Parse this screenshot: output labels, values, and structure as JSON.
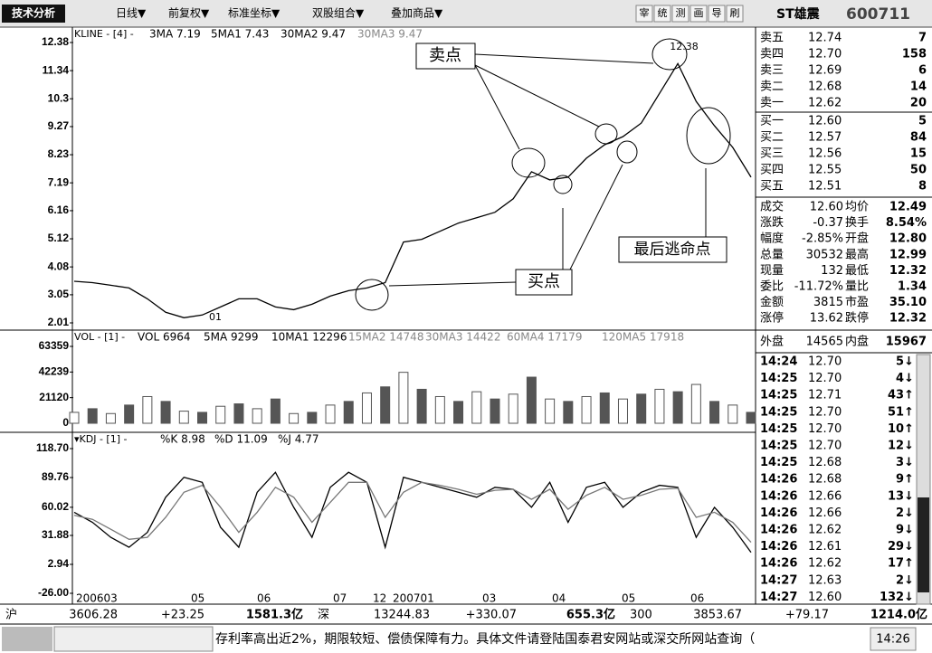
{
  "toolbar": {
    "title": "技术分析",
    "menus": [
      "日线▼",
      "前复权▼",
      "标准坐标▼",
      "双股组合▼",
      "叠加商品▼"
    ],
    "tools": [
      "宰",
      "统",
      "测",
      "画",
      "导",
      "刷"
    ]
  },
  "chart_data": [
    {
      "type": "line",
      "header": "KLINE - [4] -",
      "legend": [
        "3MA 7.19",
        "5MA1 7.43",
        "30MA2 9.47",
        "30MA3 9.47"
      ],
      "values": [
        3.55,
        3.5,
        3.4,
        3.3,
        2.9,
        2.4,
        2.2,
        2.3,
        2.6,
        2.9,
        2.9,
        2.6,
        2.5,
        2.7,
        3.0,
        3.2,
        3.3,
        3.5,
        5.0,
        5.1,
        5.4,
        5.7,
        5.9,
        6.1,
        6.6,
        7.6,
        7.3,
        7.4,
        8.1,
        8.6,
        8.9,
        9.4,
        10.5,
        11.6,
        10.2,
        9.3,
        8.5,
        7.4
      ],
      "color": "#000000",
      "ylim": [
        2.01,
        12.38
      ],
      "yticks": [
        12.38,
        11.34,
        10.3,
        9.27,
        8.23,
        7.19,
        6.16,
        5.12,
        4.08,
        3.05,
        2.01
      ],
      "annotations": [
        "卖点",
        "买点",
        "最后逃命点",
        "12.38",
        "01"
      ]
    },
    {
      "type": "bar",
      "header": "VOL - [1] -",
      "legend": [
        "VOL 6964",
        "5MA 9299",
        "10MA1 12296",
        "15MA2 14748",
        "30MA3 14422",
        "60MA4 17179",
        "120MA5 17918"
      ],
      "values": [
        9000,
        12000,
        8000,
        15000,
        22000,
        18000,
        10000,
        9000,
        14000,
        16000,
        12000,
        20000,
        8000,
        9000,
        15000,
        18000,
        25000,
        30000,
        42000,
        28000,
        22000,
        18000,
        26000,
        20000,
        24000,
        38000,
        20000,
        18000,
        22000,
        25000,
        20000,
        24000,
        28000,
        26000,
        32000,
        18000,
        15000,
        9000
      ],
      "color": "#555555",
      "ylim": [
        0,
        63359
      ],
      "yticks": [
        63359,
        42239,
        21120,
        0
      ]
    },
    {
      "type": "line",
      "header": "▾KDJ - [1] -",
      "legend": [
        "%K 8.98",
        "%D 11.09",
        "%J 4.77"
      ],
      "series": [
        {
          "name": "K",
          "color": "#000000",
          "values": [
            55,
            45,
            30,
            20,
            35,
            70,
            90,
            85,
            40,
            20,
            75,
            95,
            60,
            30,
            80,
            95,
            85,
            20,
            90,
            85,
            80,
            75,
            70,
            80,
            78,
            60,
            85,
            45,
            80,
            85,
            60,
            75,
            82,
            80,
            30,
            60,
            40,
            15
          ]
        },
        {
          "name": "D",
          "color": "#777777",
          "values": [
            52,
            48,
            38,
            28,
            30,
            50,
            75,
            82,
            60,
            35,
            55,
            80,
            70,
            45,
            65,
            85,
            85,
            50,
            75,
            85,
            82,
            78,
            73,
            77,
            78,
            68,
            78,
            58,
            72,
            80,
            68,
            72,
            78,
            79,
            50,
            55,
            45,
            25
          ]
        }
      ],
      "ylim": [
        -26,
        118.7
      ],
      "yticks": [
        {
          "value": 118.7,
          "label": "118.70"
        },
        89.76,
        60.02,
        31.88,
        2.94,
        {
          "value": -26,
          "label": "-26.00"
        }
      ]
    }
  ],
  "time_axis": [
    "200603",
    "05",
    "06",
    "07",
    "12",
    "200701",
    "03",
    "04",
    "05",
    "06"
  ],
  "quote": {
    "name": "ST雄震",
    "code": "600711",
    "asks": [
      [
        "卖五",
        "12.74",
        "7"
      ],
      [
        "卖四",
        "12.70",
        "158"
      ],
      [
        "卖三",
        "12.69",
        "6"
      ],
      [
        "卖二",
        "12.68",
        "14"
      ],
      [
        "卖一",
        "12.62",
        "20"
      ]
    ],
    "bids": [
      [
        "买一",
        "12.60",
        "5"
      ],
      [
        "买二",
        "12.57",
        "84"
      ],
      [
        "买三",
        "12.56",
        "15"
      ],
      [
        "买四",
        "12.55",
        "50"
      ],
      [
        "买五",
        "12.51",
        "8"
      ]
    ],
    "stats": [
      [
        "成交",
        "12.60",
        "均价",
        "12.49"
      ],
      [
        "涨跌",
        "-0.37",
        "换手",
        "8.54%"
      ],
      [
        "幅度",
        "-2.85%",
        "开盘",
        "12.80"
      ],
      [
        "总量",
        "30532",
        "最高",
        "12.99"
      ],
      [
        "现量",
        "132",
        "最低",
        "12.32"
      ],
      [
        "委比",
        "-11.72%",
        "量比",
        "1.34"
      ],
      [
        "金额",
        "3815",
        "市盈",
        "35.10"
      ],
      [
        "涨停",
        "13.62",
        "跌停",
        "12.32"
      ]
    ],
    "outer": [
      "外盘",
      "14565",
      "内盘",
      "15967"
    ],
    "ticks": [
      [
        "14:24",
        "12.70",
        "5↓"
      ],
      [
        "14:25",
        "12.70",
        "4↓"
      ],
      [
        "14:25",
        "12.71",
        "43↑"
      ],
      [
        "14:25",
        "12.70",
        "51↑"
      ],
      [
        "14:25",
        "12.70",
        "10↑"
      ],
      [
        "14:25",
        "12.70",
        "12↓"
      ],
      [
        "14:25",
        "12.68",
        "3↓"
      ],
      [
        "14:26",
        "12.68",
        "9↑"
      ],
      [
        "14:26",
        "12.66",
        "13↓"
      ],
      [
        "14:26",
        "12.66",
        "2↓"
      ],
      [
        "14:26",
        "12.62",
        "9↓"
      ],
      [
        "14:26",
        "12.61",
        "29↓"
      ],
      [
        "14:26",
        "12.62",
        "17↑"
      ],
      [
        "14:27",
        "12.63",
        "2↓"
      ],
      [
        "14:27",
        "12.60",
        "132↓"
      ]
    ]
  },
  "market_bar": [
    [
      "沪",
      "3606.28",
      "+23.25",
      "1581.3亿"
    ],
    [
      "深",
      "13244.83",
      "+330.07",
      "655.3亿"
    ],
    [
      "300",
      "3853.67",
      "+79.17",
      "1214.0亿"
    ]
  ],
  "ticker": "存利率高出近2%，期限较短、偿债保障有力。具体文件请登陆国泰君安网站或深交所网站查询（",
  "clock": "14:26"
}
